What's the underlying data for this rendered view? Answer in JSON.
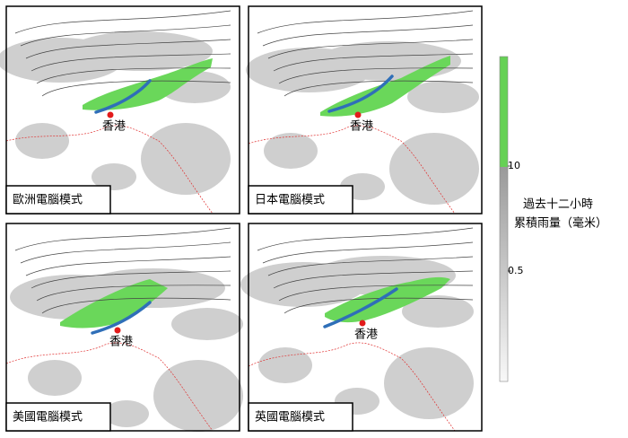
{
  "panels": [
    {
      "label": "歐洲電腦模式",
      "city": "香港"
    },
    {
      "label": "日本電腦模式",
      "city": "香港"
    },
    {
      "label": "美國電腦模式",
      "city": "香港"
    },
    {
      "label": "英國電腦模式",
      "city": "香港"
    }
  ],
  "legend": {
    "title_lines": [
      "過去十二小時",
      "累積雨量（毫米）"
    ],
    "ticks": [
      "10",
      "0.5"
    ]
  }
}
